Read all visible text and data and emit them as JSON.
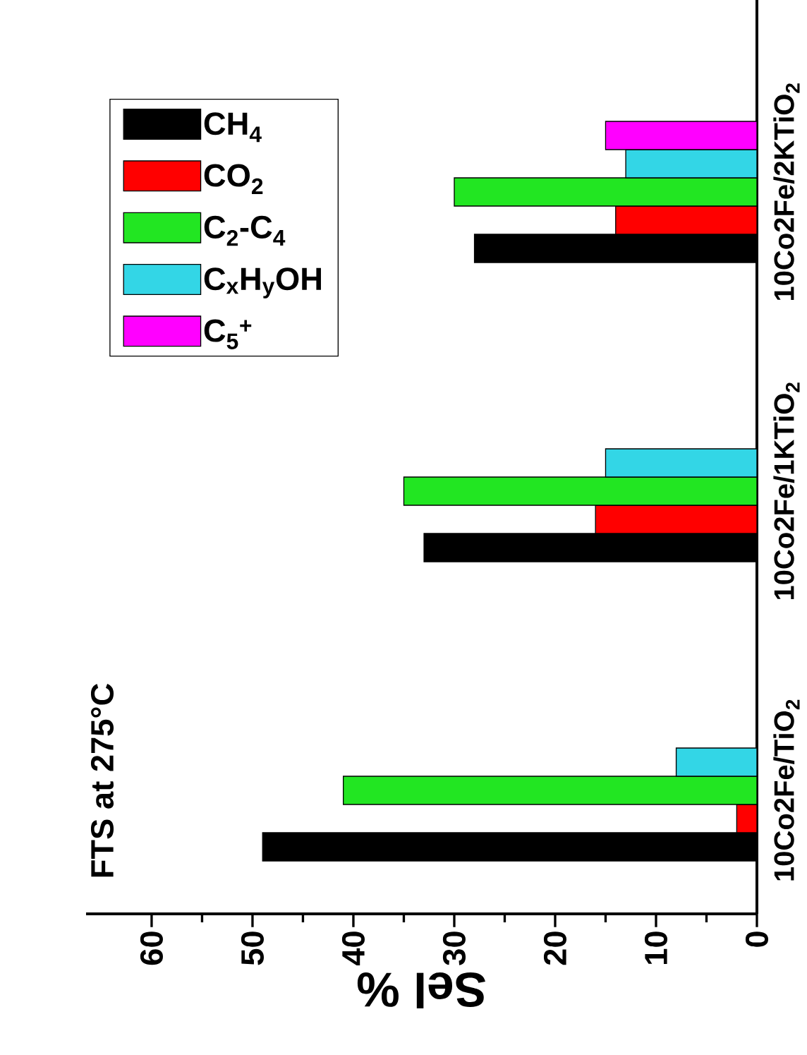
{
  "chart_data": {
    "type": "bar",
    "orientation": "horizontal",
    "xlabel": "Sel %",
    "categories": [
      "10Co2Fe/2KTiO$_{2}$",
      "10Co2Fe/1KTiO$_{2}$",
      "10Co2Fe/TiO$_{2}$"
    ],
    "series": [
      {
        "name": "CH$_{4}$",
        "color": "#000000",
        "values": [
          28,
          33,
          49
        ]
      },
      {
        "name": "CO$_{2}$",
        "color": "#ff0000",
        "values": [
          14,
          16,
          2
        ]
      },
      {
        "name": "C$_{2}$-C$_{4}$",
        "color": "#22e622",
        "values": [
          30,
          35,
          41
        ]
      },
      {
        "name": "C$_{x}$H$_{y}$OH",
        "color": "#33d6e6",
        "values": [
          13,
          15,
          8
        ]
      },
      {
        "name": "C$_{5}$$^{+}$",
        "color": "#ff00ff",
        "values": [
          15,
          null,
          null
        ]
      }
    ],
    "xlim": [
      66.5,
      0
    ],
    "xticks": [
      60,
      50,
      40,
      30,
      20,
      10,
      0
    ],
    "legend": "top left",
    "annotations": [
      "FTS at  275°C"
    ]
  }
}
